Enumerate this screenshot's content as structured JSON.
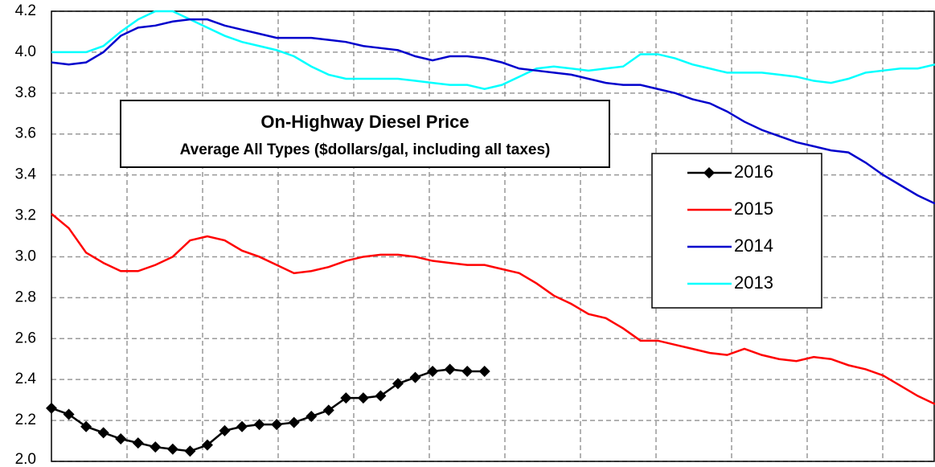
{
  "chart_data": {
    "type": "line",
    "title": "On-Highway Diesel Price",
    "subtitle": "Average All Types ($dollars/gal, including all taxes)",
    "x": [
      0,
      1,
      2,
      3,
      4,
      5,
      6,
      7,
      8,
      9,
      10,
      11,
      12,
      13,
      14,
      15,
      16,
      17,
      18,
      19,
      20,
      21,
      22,
      23,
      24,
      25,
      26,
      27,
      28,
      29,
      30,
      31,
      32,
      33,
      34,
      35,
      36,
      37,
      38,
      39,
      40,
      41,
      42,
      43,
      44,
      45,
      46,
      47,
      48,
      49,
      50,
      51
    ],
    "xlim": [
      0,
      51
    ],
    "ylim": [
      2.0,
      4.2
    ],
    "yticks": [
      {
        "value": 2,
        "label": "2.0"
      },
      2.2,
      2.4,
      2.6,
      2.8,
      {
        "value": 3,
        "label": "3.0"
      },
      3.2,
      3.4,
      3.6,
      3.8,
      {
        "value": 4,
        "label": "4.0"
      },
      4.2
    ],
    "grid": true,
    "series": [
      {
        "name": "2016",
        "color": "#000000",
        "marker": "diamond",
        "values": [
          2.26,
          2.23,
          2.17,
          2.14,
          2.11,
          2.09,
          2.07,
          2.06,
          2.05,
          2.08,
          2.15,
          2.17,
          2.18,
          2.18,
          2.19,
          2.22,
          2.25,
          2.31,
          2.31,
          2.32,
          2.38,
          2.41,
          2.44,
          2.45,
          2.44,
          2.44,
          null,
          null,
          null,
          null,
          null,
          null,
          null,
          null,
          null,
          null,
          null,
          null,
          null,
          null,
          null,
          null,
          null,
          null,
          null,
          null,
          null,
          null,
          null,
          null,
          null,
          null
        ]
      },
      {
        "name": "2015",
        "color": "#ff0000",
        "values": [
          3.21,
          3.14,
          3.02,
          2.97,
          2.93,
          2.93,
          2.96,
          3.0,
          3.08,
          3.1,
          3.08,
          3.03,
          3.0,
          2.96,
          2.92,
          2.93,
          2.95,
          2.98,
          3.0,
          3.01,
          3.01,
          3.0,
          2.98,
          2.97,
          2.96,
          2.96,
          2.94,
          2.92,
          2.87,
          2.81,
          2.77,
          2.72,
          2.7,
          2.65,
          2.59,
          2.59,
          2.57,
          2.55,
          2.53,
          2.52,
          2.55,
          2.52,
          2.5,
          2.49,
          2.51,
          2.5,
          2.47,
          2.45,
          2.42,
          2.37,
          2.32,
          2.28
        ]
      },
      {
        "name": "2014",
        "color": "#0000cc",
        "values": [
          3.95,
          3.94,
          3.95,
          4.0,
          4.08,
          4.12,
          4.13,
          4.15,
          4.16,
          4.16,
          4.13,
          4.11,
          4.09,
          4.07,
          4.07,
          4.07,
          4.06,
          4.05,
          4.03,
          4.02,
          4.01,
          3.98,
          3.96,
          3.98,
          3.98,
          3.97,
          3.95,
          3.92,
          3.91,
          3.9,
          3.89,
          3.87,
          3.85,
          3.84,
          3.84,
          3.82,
          3.8,
          3.77,
          3.75,
          3.71,
          3.66,
          3.62,
          3.59,
          3.56,
          3.54,
          3.52,
          3.51,
          3.46,
          3.4,
          3.35,
          3.3,
          3.26
        ]
      },
      {
        "name": "2013",
        "color": "#00ffff",
        "values": [
          4.0,
          4.0,
          4.0,
          4.03,
          4.1,
          4.16,
          4.2,
          4.2,
          4.16,
          4.12,
          4.08,
          4.05,
          4.03,
          4.01,
          3.98,
          3.93,
          3.89,
          3.87,
          3.87,
          3.87,
          3.87,
          3.86,
          3.85,
          3.84,
          3.84,
          3.82,
          3.84,
          3.88,
          3.92,
          3.93,
          3.92,
          3.91,
          3.92,
          3.93,
          3.99,
          3.99,
          3.97,
          3.94,
          3.92,
          3.9,
          3.9,
          3.9,
          3.89,
          3.88,
          3.86,
          3.85,
          3.87,
          3.9,
          3.91,
          3.92,
          3.92,
          3.94
        ]
      }
    ]
  }
}
